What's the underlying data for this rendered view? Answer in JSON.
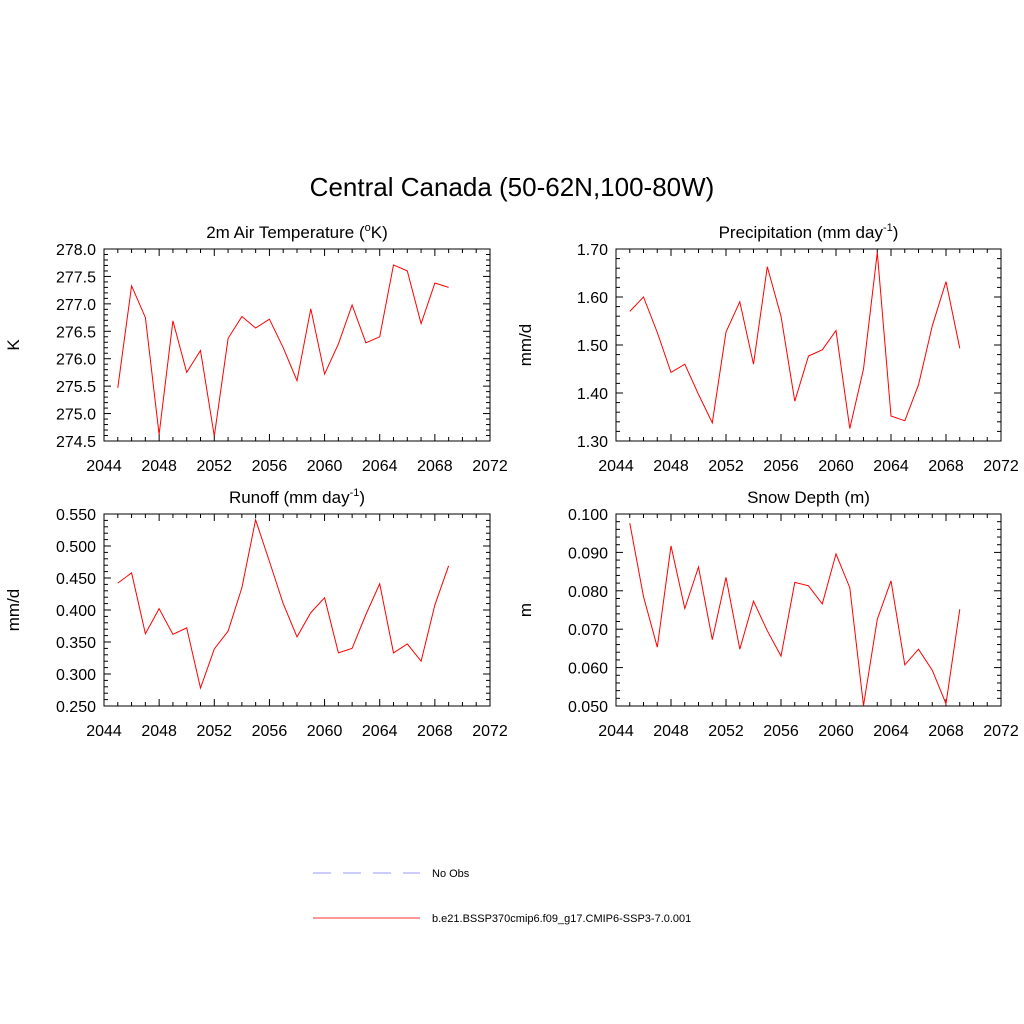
{
  "figure": {
    "title": "Central Canada (50-62N,100-80W)"
  },
  "legend": {
    "entries": [
      {
        "label": "No Obs",
        "color": "#9999ff",
        "dashed": true
      },
      {
        "label": "b.e21.BSSP370cmip6.f09_g17.CMIP6-SSP3-7.0.001",
        "color": "#ff3333",
        "dashed": false
      }
    ]
  },
  "chart_data": [
    {
      "type": "line",
      "id": "temp",
      "title_main": "2m Air Temperature (",
      "title_sup": "o",
      "title_tail": "K)",
      "ylabel": "K",
      "xlabel": "",
      "xlim": [
        2044,
        2072
      ],
      "ylim": [
        274.5,
        278.0
      ],
      "x_ticks": [
        "2044",
        "2048",
        "2052",
        "2056",
        "2060",
        "2064",
        "2068",
        "2072"
      ],
      "y_ticks": [
        "274.5",
        "275.0",
        "275.5",
        "276.0",
        "276.5",
        "277.0",
        "277.5",
        "278.0"
      ],
      "grid": false,
      "series": [
        {
          "color": "#ff0000",
          "x": [
            2045,
            2046,
            2047,
            2048,
            2049,
            2050,
            2051,
            2052,
            2053,
            2054,
            2055,
            2056,
            2057,
            2058,
            2059,
            2060,
            2061,
            2062,
            2063,
            2064,
            2065,
            2066,
            2067,
            2068,
            2069
          ],
          "values": [
            275.47,
            277.33,
            276.75,
            274.62,
            276.69,
            275.75,
            276.15,
            274.59,
            276.37,
            276.77,
            276.56,
            276.72,
            276.2,
            275.6,
            276.91,
            275.72,
            276.27,
            276.98,
            276.29,
            276.4,
            277.71,
            277.6,
            276.64,
            277.38,
            277.3
          ]
        }
      ]
    },
    {
      "type": "line",
      "id": "precip",
      "title_main": "Precipitation (mm day",
      "title_sup": "-1",
      "title_tail": ")",
      "ylabel": "mm/d",
      "xlabel": "",
      "xlim": [
        2044,
        2072
      ],
      "ylim": [
        1.3,
        1.7
      ],
      "x_ticks": [
        "2044",
        "2048",
        "2052",
        "2056",
        "2060",
        "2064",
        "2068",
        "2072"
      ],
      "y_ticks": [
        "1.30",
        "1.40",
        "1.50",
        "1.60",
        "1.70"
      ],
      "grid": false,
      "series": [
        {
          "color": "#ff0000",
          "x": [
            2045,
            2046,
            2047,
            2048,
            2049,
            2050,
            2051,
            2052,
            2053,
            2054,
            2055,
            2056,
            2057,
            2058,
            2059,
            2060,
            2061,
            2062,
            2063,
            2064,
            2065,
            2066,
            2067,
            2068,
            2069
          ],
          "values": [
            1.57,
            1.6,
            1.526,
            1.443,
            1.46,
            1.397,
            1.338,
            1.527,
            1.59,
            1.46,
            1.663,
            1.56,
            1.383,
            1.477,
            1.49,
            1.53,
            1.326,
            1.45,
            1.693,
            1.352,
            1.342,
            1.417,
            1.54,
            1.632,
            1.493
          ]
        }
      ]
    },
    {
      "type": "line",
      "id": "runoff",
      "title_main": "Runoff (mm day",
      "title_sup": "-1",
      "title_tail": ")",
      "ylabel": "mm/d",
      "xlabel": "",
      "xlim": [
        2044,
        2072
      ],
      "ylim": [
        0.25,
        0.55
      ],
      "x_ticks": [
        "2044",
        "2048",
        "2052",
        "2056",
        "2060",
        "2064",
        "2068",
        "2072"
      ],
      "y_ticks": [
        "0.250",
        "0.300",
        "0.350",
        "0.400",
        "0.450",
        "0.500",
        "0.550"
      ],
      "grid": false,
      "series": [
        {
          "color": "#ff0000",
          "x": [
            2045,
            2046,
            2047,
            2048,
            2049,
            2050,
            2051,
            2052,
            2053,
            2054,
            2055,
            2056,
            2057,
            2058,
            2059,
            2060,
            2061,
            2062,
            2063,
            2064,
            2065,
            2066,
            2067,
            2068,
            2069
          ],
          "values": [
            0.442,
            0.458,
            0.363,
            0.402,
            0.362,
            0.372,
            0.278,
            0.339,
            0.367,
            0.435,
            0.541,
            0.476,
            0.41,
            0.358,
            0.396,
            0.419,
            0.333,
            0.34,
            0.393,
            0.441,
            0.333,
            0.347,
            0.32,
            0.408,
            0.469
          ]
        }
      ]
    },
    {
      "type": "line",
      "id": "snow",
      "title_main": "Snow Depth (m)",
      "title_sup": "",
      "title_tail": "",
      "ylabel": "m",
      "xlabel": "",
      "xlim": [
        2044,
        2072
      ],
      "ylim": [
        0.05,
        0.1
      ],
      "x_ticks": [
        "2044",
        "2048",
        "2052",
        "2056",
        "2060",
        "2064",
        "2068",
        "2072"
      ],
      "y_ticks": [
        "0.050",
        "0.060",
        "0.070",
        "0.080",
        "0.090",
        "0.100"
      ],
      "grid": false,
      "series": [
        {
          "color": "#ff0000",
          "x": [
            2045,
            2046,
            2047,
            2048,
            2049,
            2050,
            2051,
            2052,
            2053,
            2054,
            2055,
            2056,
            2057,
            2058,
            2059,
            2060,
            2061,
            2062,
            2063,
            2064,
            2065,
            2066,
            2067,
            2068,
            2069
          ],
          "values": [
            0.0976,
            0.0785,
            0.0653,
            0.0917,
            0.0754,
            0.0862,
            0.0673,
            0.0835,
            0.0648,
            0.0773,
            0.0696,
            0.063,
            0.0822,
            0.0813,
            0.0766,
            0.0896,
            0.0808,
            0.0501,
            0.0726,
            0.0826,
            0.0607,
            0.0648,
            0.0593,
            0.0506,
            0.0752
          ]
        }
      ]
    }
  ]
}
